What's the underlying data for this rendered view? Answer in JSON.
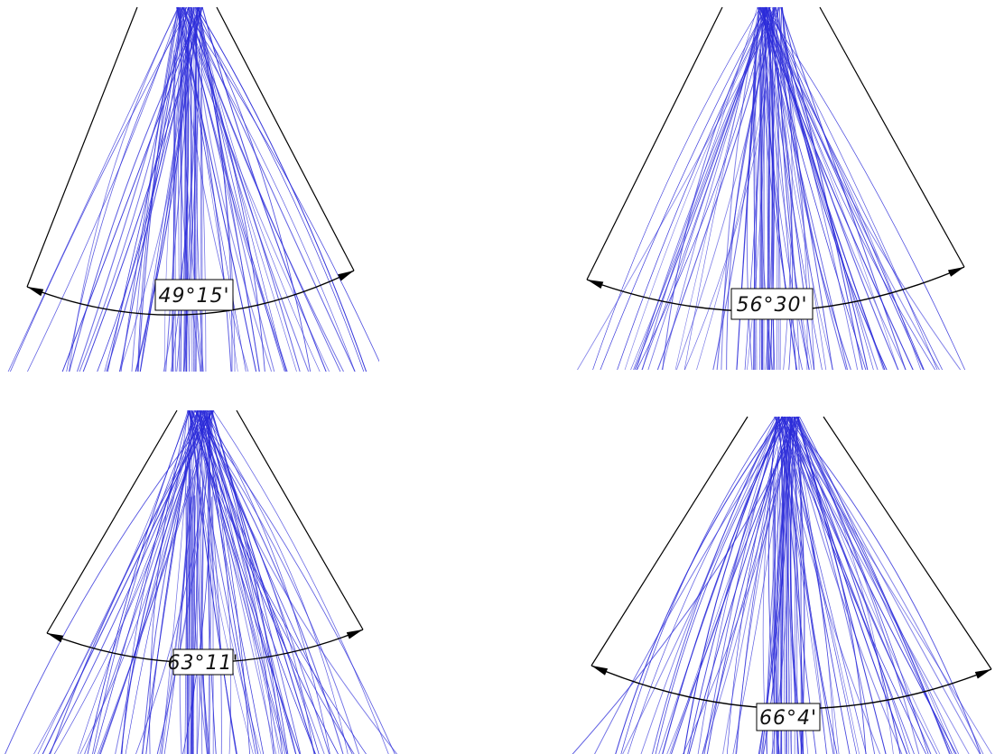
{
  "colors": {
    "background": "#ffffff",
    "ray": "#2b2bd9",
    "dimension": "#000000"
  },
  "panels": [
    {
      "id": "top-left",
      "angle_label": "49°15'"
    },
    {
      "id": "top-right",
      "angle_label": "56°30'"
    },
    {
      "id": "bottom-left",
      "angle_label": "63°11'"
    },
    {
      "id": "bottom-right",
      "angle_label": "66°4'"
    }
  ]
}
